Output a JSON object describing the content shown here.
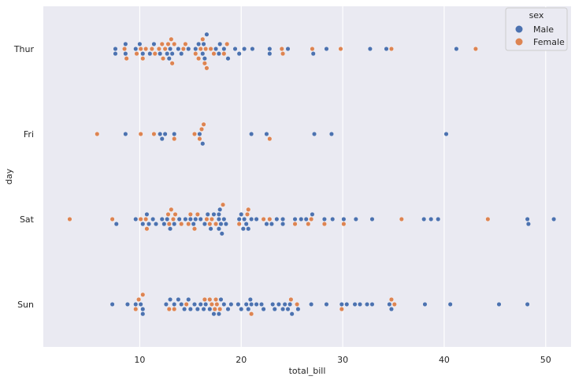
{
  "chart_data": {
    "type": "scatter",
    "subtype": "swarm",
    "xlabel": "total_bill",
    "ylabel": "day",
    "categories": [
      "Thur",
      "Fri",
      "Sat",
      "Sun"
    ],
    "xlim": [
      0.5,
      52.5
    ],
    "xticks": [
      10,
      20,
      30,
      40,
      50
    ],
    "grid": "x",
    "background_color": "#eaeaf2",
    "legend": {
      "title": "sex",
      "placement": "top-right",
      "entries": [
        {
          "label": "Male",
          "color": "#4c72b0"
        },
        {
          "label": "Female",
          "color": "#dd8452"
        }
      ]
    },
    "series": [
      {
        "name": "Male",
        "color": "#4c72b0",
        "data": {
          "Thur": [
            7.6,
            7.6,
            8.6,
            8.6,
            9.6,
            10.0,
            10.3,
            11.0,
            11.4,
            12.0,
            12.7,
            12.9,
            13.0,
            13.2,
            13.8,
            14.1,
            14.8,
            15.5,
            15.8,
            16.2,
            16.3,
            16.4,
            16.6,
            17.5,
            17.8,
            17.9,
            18.3,
            18.7,
            19.4,
            19.8,
            20.3,
            21.1,
            22.8,
            22.8,
            24.6,
            27.1,
            28.4,
            32.7,
            34.3,
            41.2
          ],
          "Fri": [
            8.6,
            12.0,
            12.2,
            12.5,
            13.4,
            15.9,
            16.2,
            21.0,
            22.5,
            27.2,
            28.9,
            40.2
          ],
          "Sat": [
            7.7,
            9.6,
            10.3,
            10.7,
            10.9,
            11.3,
            11.6,
            12.2,
            12.4,
            12.7,
            13.0,
            13.4,
            13.9,
            14.5,
            15.0,
            15.3,
            15.5,
            16.0,
            16.4,
            16.7,
            17.0,
            17.3,
            17.8,
            17.8,
            17.8,
            17.9,
            18.0,
            18.1,
            18.3,
            18.5,
            19.8,
            20.0,
            20.2,
            20.3,
            20.5,
            20.7,
            21.0,
            21.5,
            22.5,
            23.0,
            23.5,
            24.1,
            24.1,
            25.3,
            25.9,
            26.4,
            27.0,
            28.2,
            29.0,
            30.1,
            31.3,
            32.9,
            38.0,
            38.7,
            39.4,
            48.2,
            48.3,
            50.8
          ],
          "Sun": [
            7.3,
            8.8,
            9.6,
            10.1,
            10.3,
            10.3,
            12.6,
            13.0,
            13.4,
            13.8,
            14.1,
            14.4,
            14.8,
            15.0,
            15.4,
            15.7,
            16.0,
            16.3,
            16.5,
            16.9,
            17.3,
            17.8,
            18.0,
            18.3,
            18.7,
            19.0,
            19.7,
            20.0,
            20.5,
            20.7,
            20.9,
            21.0,
            21.5,
            22.0,
            22.2,
            23.1,
            23.3,
            23.7,
            24.1,
            24.3,
            24.6,
            24.8,
            25.0,
            25.6,
            26.9,
            28.4,
            29.9,
            30.4,
            31.2,
            31.7,
            32.4,
            32.9,
            34.6,
            34.8,
            38.1,
            40.6,
            45.4,
            48.2
          ]
        }
      },
      {
        "name": "Female",
        "color": "#dd8452",
        "data": {
          "Thur": [
            8.5,
            8.7,
            9.7,
            10.1,
            10.3,
            10.6,
            11.2,
            11.5,
            11.9,
            12.2,
            12.3,
            12.5,
            12.8,
            13.1,
            13.2,
            13.4,
            14.3,
            14.5,
            15.5,
            15.8,
            16.0,
            16.2,
            16.4,
            16.5,
            16.6,
            17.0,
            17.3,
            18.3,
            18.6,
            24.0,
            24.1,
            27.0,
            29.8,
            34.8,
            43.1
          ],
          "Fri": [
            5.8,
            10.1,
            11.4,
            13.4,
            15.4,
            15.9,
            16.1,
            16.3,
            22.8
          ],
          "Sat": [
            3.1,
            7.3,
            10.1,
            10.6,
            10.7,
            12.8,
            12.9,
            13.1,
            13.3,
            13.5,
            14.1,
            14.8,
            15.0,
            15.4,
            15.7,
            16.6,
            16.9,
            17.1,
            17.5,
            18.2,
            19.8,
            20.6,
            20.7,
            22.2,
            22.8,
            25.3,
            26.6,
            26.9,
            28.2,
            30.1,
            35.8,
            44.3
          ],
          "Sun": [
            9.6,
            9.9,
            10.3,
            12.9,
            13.4,
            14.6,
            16.4,
            16.9,
            17.1,
            17.4,
            17.5,
            17.6,
            17.9,
            21.0,
            24.9,
            25.5,
            29.9,
            34.8,
            35.1
          ]
        }
      }
    ]
  }
}
